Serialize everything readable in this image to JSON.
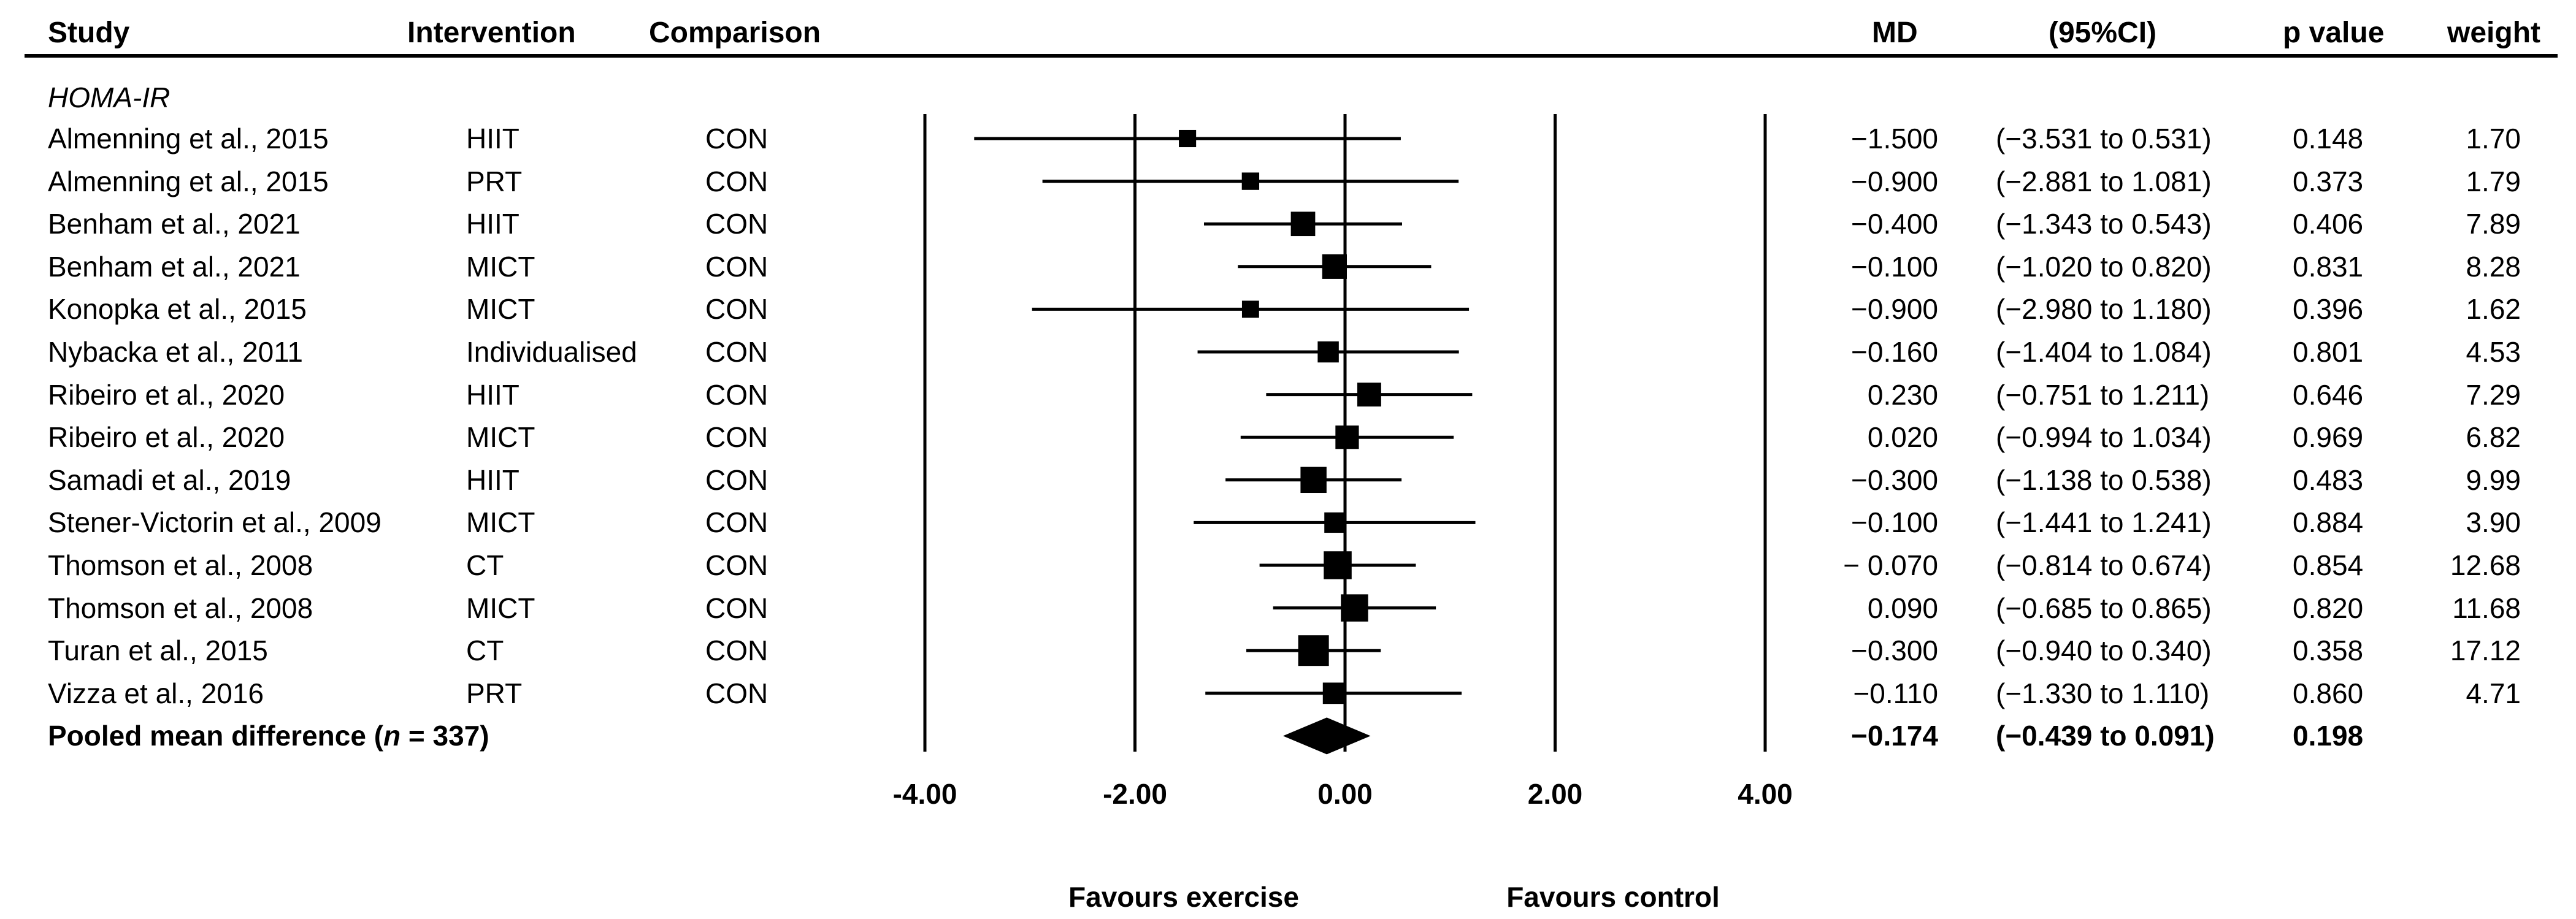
{
  "header": {
    "study": "Study",
    "intervention": "Intervention",
    "comparison": "Comparison",
    "md": "MD",
    "ci": "(95%CI)",
    "p": "p value",
    "weight": "weight"
  },
  "section_label": "HOMA-IR",
  "rows": [
    {
      "study": "Almenning et al., 2015",
      "intervention": "HIIT",
      "comparison": "CON",
      "md_text": "−1.500",
      "ci_text": "(−3.531 to 0.531)",
      "p": "0.148",
      "weight": "1.70"
    },
    {
      "study": "Almenning et al., 2015",
      "intervention": "PRT",
      "comparison": "CON",
      "md_text": "−0.900",
      "ci_text": "(−2.881 to 1.081)",
      "p": "0.373",
      "weight": "1.79"
    },
    {
      "study": "Benham et al., 2021",
      "intervention": "HIIT",
      "comparison": "CON",
      "md_text": "−0.400",
      "ci_text": "(−1.343 to 0.543)",
      "p": "0.406",
      "weight": "7.89"
    },
    {
      "study": "Benham et al., 2021",
      "intervention": "MICT",
      "comparison": "CON",
      "md_text": "−0.100",
      "ci_text": "(−1.020 to 0.820)",
      "p": "0.831",
      "weight": "8.28"
    },
    {
      "study": "Konopka et al., 2015",
      "intervention": "MICT",
      "comparison": "CON",
      "md_text": "−0.900",
      "ci_text": "(−2.980 to 1.180)",
      "p": "0.396",
      "weight": "1.62"
    },
    {
      "study": "Nybacka et al., 2011",
      "intervention": "Individualised",
      "comparison": "CON",
      "md_text": "−0.160",
      "ci_text": "(−1.404 to 1.084)",
      "p": "0.801",
      "weight": "4.53"
    },
    {
      "study": "Ribeiro et al., 2020",
      "intervention": "HIIT",
      "comparison": "CON",
      "md_text": "0.230",
      "ci_text": "(−0.751 to 1.211)",
      "p": "0.646",
      "weight": "7.29"
    },
    {
      "study": "Ribeiro et al., 2020",
      "intervention": "MICT",
      "comparison": "CON",
      "md_text": "0.020",
      "ci_text": "(−0.994 to 1.034)",
      "p": "0.969",
      "weight": "6.82"
    },
    {
      "study": "Samadi et al., 2019",
      "intervention": "HIIT",
      "comparison": "CON",
      "md_text": "−0.300",
      "ci_text": "(−1.138 to 0.538)",
      "p": "0.483",
      "weight": "9.99"
    },
    {
      "study": "Stener-Victorin et al., 2009",
      "intervention": "MICT",
      "comparison": "CON",
      "md_text": "−0.100",
      "ci_text": "(−1.441 to 1.241)",
      "p": "0.884",
      "weight": "3.90"
    },
    {
      "study": "Thomson et al., 2008",
      "intervention": "CT",
      "comparison": "CON",
      "md_text": "− 0.070",
      "ci_text": "(−0.814 to 0.674)",
      "p": "0.854",
      "weight": "12.68"
    },
    {
      "study": "Thomson et al., 2008",
      "intervention": "MICT",
      "comparison": "CON",
      "md_text": "0.090",
      "ci_text": "(−0.685 to 0.865)",
      "p": "0.820",
      "weight": "11.68"
    },
    {
      "study": "Turan et al., 2015",
      "intervention": "CT",
      "comparison": "CON",
      "md_text": "−0.300",
      "ci_text": "(−0.940 to 0.340)",
      "p": "0.358",
      "weight": "17.12"
    },
    {
      "study": "Vizza et al., 2016",
      "intervention": "PRT",
      "comparison": "CON",
      "md_text": "−0.110",
      "ci_text": "(−1.330 to 1.110)",
      "p": "0.860",
      "weight": "4.71"
    }
  ],
  "pooled": {
    "label_prefix": "Pooled mean difference (",
    "label_n": "n",
    "label_suffix": " = 337)",
    "md_text": "−0.174",
    "ci_text": "(−0.439 to 0.091)",
    "p": "0.198"
  },
  "axis": {
    "tick_labels": [
      "-4.00",
      "-2.00",
      "0.00",
      "2.00",
      "4.00"
    ],
    "favours_left": "Favours exercise",
    "favours_right": "Favours control"
  },
  "chart_data": {
    "type": "forest",
    "xlim": [
      -4,
      4
    ],
    "ticks": [
      -4,
      -2,
      0,
      2,
      4
    ],
    "points": [
      {
        "md": -1.5,
        "lo": -3.531,
        "hi": 0.531,
        "weight": 1.7
      },
      {
        "md": -0.9,
        "lo": -2.881,
        "hi": 1.081,
        "weight": 1.79
      },
      {
        "md": -0.4,
        "lo": -1.343,
        "hi": 0.543,
        "weight": 7.89
      },
      {
        "md": -0.1,
        "lo": -1.02,
        "hi": 0.82,
        "weight": 8.28
      },
      {
        "md": -0.9,
        "lo": -2.98,
        "hi": 1.18,
        "weight": 1.62
      },
      {
        "md": -0.16,
        "lo": -1.404,
        "hi": 1.084,
        "weight": 4.53
      },
      {
        "md": 0.23,
        "lo": -0.751,
        "hi": 1.211,
        "weight": 7.29
      },
      {
        "md": 0.02,
        "lo": -0.994,
        "hi": 1.034,
        "weight": 6.82
      },
      {
        "md": -0.3,
        "lo": -1.138,
        "hi": 0.538,
        "weight": 9.99
      },
      {
        "md": -0.1,
        "lo": -1.441,
        "hi": 1.241,
        "weight": 3.9
      },
      {
        "md": -0.07,
        "lo": -0.814,
        "hi": 0.674,
        "weight": 12.68
      },
      {
        "md": 0.09,
        "lo": -0.685,
        "hi": 0.865,
        "weight": 11.68
      },
      {
        "md": -0.3,
        "lo": -0.94,
        "hi": 0.34,
        "weight": 17.12
      },
      {
        "md": -0.11,
        "lo": -1.33,
        "hi": 1.11,
        "weight": 4.71
      }
    ],
    "pooled": {
      "md": -0.174,
      "lo": -0.439,
      "hi": 0.091
    }
  }
}
